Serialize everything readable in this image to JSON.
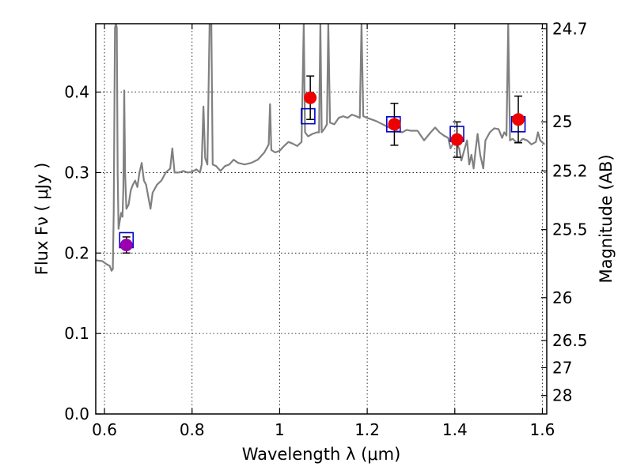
{
  "chart_data": {
    "type": "line",
    "title": "",
    "xlabel": "Wavelength  λ (μm)",
    "ylabel": "Flux  Fν  ( μJy )",
    "y2label": "Magnitude (AB)",
    "xlim": [
      0.58,
      1.61
    ],
    "ylim": [
      0.0,
      0.485
    ],
    "grid": true,
    "legend": "none",
    "x_ticks": [
      {
        "value": 0.6,
        "label": "0.6"
      },
      {
        "value": 0.8,
        "label": "0.8"
      },
      {
        "value": 1.0,
        "label": "1"
      },
      {
        "value": 1.2,
        "label": "1.2"
      },
      {
        "value": 1.4,
        "label": "1.4"
      },
      {
        "value": 1.6,
        "label": "1.6"
      }
    ],
    "y_ticks": [
      {
        "value": 0.0,
        "label": "0.0"
      },
      {
        "value": 0.1,
        "label": "0.1"
      },
      {
        "value": 0.2,
        "label": "0.2"
      },
      {
        "value": 0.3,
        "label": "0.3"
      },
      {
        "value": 0.4,
        "label": "0.4"
      }
    ],
    "y2_ticks": [
      {
        "value": 24.7,
        "label": "24.7"
      },
      {
        "value": 25.0,
        "label": "25"
      },
      {
        "value": 25.2,
        "label": "25.2"
      },
      {
        "value": 25.5,
        "label": "25.5"
      },
      {
        "value": 26.0,
        "label": "26"
      },
      {
        "value": 26.5,
        "label": "26.5"
      },
      {
        "value": 27.0,
        "label": "27"
      },
      {
        "value": 28.0,
        "label": "28"
      }
    ],
    "series": [
      {
        "kind": "spectrum",
        "color": "#808080",
        "points": [
          [
            0.58,
            0.191
          ],
          [
            0.595,
            0.19
          ],
          [
            0.605,
            0.186
          ],
          [
            0.612,
            0.184
          ],
          [
            0.616,
            0.178
          ],
          [
            0.619,
            0.18
          ],
          [
            0.621,
            0.25
          ],
          [
            0.624,
            0.48
          ],
          [
            0.626,
            0.485
          ],
          [
            0.628,
            0.48
          ],
          [
            0.63,
            0.3
          ],
          [
            0.632,
            0.23
          ],
          [
            0.635,
            0.24
          ],
          [
            0.638,
            0.25
          ],
          [
            0.641,
            0.245
          ],
          [
            0.643,
            0.28
          ],
          [
            0.645,
            0.402
          ],
          [
            0.647,
            0.3
          ],
          [
            0.65,
            0.255
          ],
          [
            0.655,
            0.26
          ],
          [
            0.66,
            0.278
          ],
          [
            0.665,
            0.285
          ],
          [
            0.67,
            0.29
          ],
          [
            0.675,
            0.282
          ],
          [
            0.68,
            0.3
          ],
          [
            0.685,
            0.312
          ],
          [
            0.69,
            0.29
          ],
          [
            0.695,
            0.285
          ],
          [
            0.7,
            0.27
          ],
          [
            0.705,
            0.255
          ],
          [
            0.71,
            0.275
          ],
          [
            0.72,
            0.285
          ],
          [
            0.73,
            0.29
          ],
          [
            0.74,
            0.3
          ],
          [
            0.75,
            0.305
          ],
          [
            0.755,
            0.33
          ],
          [
            0.76,
            0.3
          ],
          [
            0.77,
            0.3
          ],
          [
            0.78,
            0.302
          ],
          [
            0.79,
            0.3
          ],
          [
            0.8,
            0.301
          ],
          [
            0.81,
            0.304
          ],
          [
            0.818,
            0.3
          ],
          [
            0.822,
            0.31
          ],
          [
            0.826,
            0.382
          ],
          [
            0.83,
            0.318
          ],
          [
            0.835,
            0.31
          ],
          [
            0.84,
            0.485
          ],
          [
            0.844,
            0.485
          ],
          [
            0.847,
            0.31
          ],
          [
            0.855,
            0.308
          ],
          [
            0.865,
            0.302
          ],
          [
            0.875,
            0.308
          ],
          [
            0.885,
            0.31
          ],
          [
            0.895,
            0.316
          ],
          [
            0.905,
            0.312
          ],
          [
            0.92,
            0.31
          ],
          [
            0.935,
            0.312
          ],
          [
            0.95,
            0.316
          ],
          [
            0.965,
            0.325
          ],
          [
            0.975,
            0.335
          ],
          [
            0.978,
            0.385
          ],
          [
            0.981,
            0.328
          ],
          [
            0.99,
            0.325
          ],
          [
            1.0,
            0.327
          ],
          [
            1.01,
            0.333
          ],
          [
            1.02,
            0.338
          ],
          [
            1.03,
            0.336
          ],
          [
            1.04,
            0.333
          ],
          [
            1.05,
            0.338
          ],
          [
            1.055,
            0.485
          ],
          [
            1.058,
            0.35
          ],
          [
            1.065,
            0.345
          ],
          [
            1.075,
            0.348
          ],
          [
            1.085,
            0.35
          ],
          [
            1.09,
            0.35
          ],
          [
            1.093,
            0.485
          ],
          [
            1.096,
            0.35
          ],
          [
            1.103,
            0.355
          ],
          [
            1.108,
            0.36
          ],
          [
            1.111,
            0.485
          ],
          [
            1.115,
            0.362
          ],
          [
            1.125,
            0.36
          ],
          [
            1.135,
            0.368
          ],
          [
            1.145,
            0.37
          ],
          [
            1.155,
            0.368
          ],
          [
            1.165,
            0.372
          ],
          [
            1.175,
            0.37
          ],
          [
            1.183,
            0.368
          ],
          [
            1.187,
            0.485
          ],
          [
            1.191,
            0.37
          ],
          [
            1.2,
            0.368
          ],
          [
            1.21,
            0.366
          ],
          [
            1.22,
            0.364
          ],
          [
            1.235,
            0.36
          ],
          [
            1.25,
            0.356
          ],
          [
            1.265,
            0.352
          ],
          [
            1.28,
            0.35
          ],
          [
            1.29,
            0.353
          ],
          [
            1.3,
            0.352
          ],
          [
            1.315,
            0.352
          ],
          [
            1.33,
            0.34
          ],
          [
            1.345,
            0.35
          ],
          [
            1.355,
            0.356
          ],
          [
            1.365,
            0.35
          ],
          [
            1.375,
            0.346
          ],
          [
            1.385,
            0.343
          ],
          [
            1.39,
            0.33
          ],
          [
            1.4,
            0.34
          ],
          [
            1.41,
            0.33
          ],
          [
            1.415,
            0.315
          ],
          [
            1.42,
            0.325
          ],
          [
            1.428,
            0.34
          ],
          [
            1.433,
            0.31
          ],
          [
            1.438,
            0.322
          ],
          [
            1.443,
            0.305
          ],
          [
            1.448,
            0.33
          ],
          [
            1.452,
            0.348
          ],
          [
            1.458,
            0.322
          ],
          [
            1.465,
            0.305
          ],
          [
            1.47,
            0.34
          ],
          [
            1.48,
            0.35
          ],
          [
            1.49,
            0.355
          ],
          [
            1.5,
            0.354
          ],
          [
            1.508,
            0.343
          ],
          [
            1.513,
            0.35
          ],
          [
            1.518,
            0.346
          ],
          [
            1.522,
            0.485
          ],
          [
            1.526,
            0.34
          ],
          [
            1.532,
            0.342
          ],
          [
            1.54,
            0.338
          ],
          [
            1.548,
            0.338
          ],
          [
            1.555,
            0.342
          ],
          [
            1.565,
            0.34
          ],
          [
            1.575,
            0.335
          ],
          [
            1.585,
            0.338
          ],
          [
            1.59,
            0.35
          ],
          [
            1.595,
            0.34
          ],
          [
            1.605,
            0.335
          ]
        ]
      },
      {
        "kind": "model-photometry",
        "marker": "open-square",
        "color": "#0000cc",
        "points": [
          [
            0.65,
            0.216
          ],
          [
            1.065,
            0.37
          ],
          [
            1.26,
            0.36
          ],
          [
            1.405,
            0.348
          ],
          [
            1.545,
            0.36
          ]
        ]
      },
      {
        "kind": "observed-photometry",
        "marker": "filled-circle",
        "points": [
          {
            "x": 0.65,
            "y": 0.21,
            "err": 0.01,
            "color": "#9b00b0"
          },
          {
            "x": 1.07,
            "y": 0.393,
            "err": 0.027,
            "color": "#ee0000"
          },
          {
            "x": 1.262,
            "y": 0.36,
            "err": 0.026,
            "color": "#ee0000"
          },
          {
            "x": 1.405,
            "y": 0.341,
            "err": 0.022,
            "color": "#ee0000"
          },
          {
            "x": 1.545,
            "y": 0.366,
            "err": 0.029,
            "color": "#ee0000"
          }
        ]
      }
    ]
  }
}
